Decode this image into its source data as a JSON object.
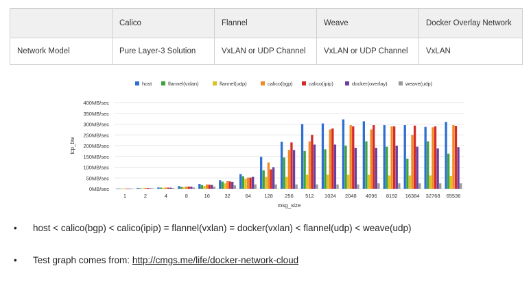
{
  "table": {
    "headers": [
      "",
      "Calico",
      "Flannel",
      "Weave",
      "Docker Overlay Network"
    ],
    "rows": [
      [
        "Network Model",
        "Pure Layer-3 Solution",
        "VxLAN or UDP Channel",
        "VxLAN or UDP Channel",
        "VxLAN"
      ]
    ]
  },
  "chart_data": {
    "type": "bar",
    "xlabel": "msg_size",
    "ylabel": "tcp_bw",
    "ylim": [
      0,
      400
    ],
    "yticks": [
      "0MB/sec",
      "50MB/sec",
      "100MB/sec",
      "150MB/sec",
      "200MB/sec",
      "250MB/sec",
      "300MB/sec",
      "350MB/sec",
      "400MB/sec"
    ],
    "legend_position": "top",
    "grid": true,
    "categories": [
      "1",
      "2",
      "4",
      "8",
      "16",
      "32",
      "64",
      "128",
      "256",
      "512",
      "1024",
      "2048",
      "4096",
      "8192",
      "16384",
      "32768",
      "65536"
    ],
    "series": [
      {
        "name": "host",
        "color": "#2f6fd1",
        "values": [
          1,
          3,
          6,
          12,
          22,
          40,
          68,
          148,
          218,
          300,
          303,
          322,
          313,
          295,
          295,
          287,
          310
        ]
      },
      {
        "name": "flannel(vxlan)",
        "color": "#3da33d",
        "values": [
          1,
          2,
          5,
          9,
          17,
          33,
          58,
          85,
          145,
          175,
          183,
          200,
          220,
          195,
          140,
          220,
          163
        ]
      },
      {
        "name": "flannel(udp)",
        "color": "#e0c020",
        "values": [
          1,
          2,
          4,
          7,
          13,
          25,
          45,
          55,
          55,
          65,
          65,
          65,
          65,
          62,
          62,
          62,
          60
        ]
      },
      {
        "name": "calico(bgp)",
        "color": "#f08a24",
        "values": [
          1,
          3,
          5,
          10,
          20,
          35,
          52,
          122,
          180,
          220,
          275,
          295,
          275,
          290,
          250,
          285,
          295
        ]
      },
      {
        "name": "calico(ipip)",
        "color": "#d42a2a",
        "values": [
          1,
          3,
          5,
          10,
          19,
          34,
          52,
          90,
          215,
          250,
          280,
          290,
          295,
          290,
          293,
          290,
          292
        ]
      },
      {
        "name": "docker(overlay)",
        "color": "#6b3fa0",
        "values": [
          1,
          2,
          5,
          10,
          18,
          32,
          55,
          100,
          180,
          205,
          205,
          190,
          190,
          200,
          195,
          187,
          193
        ]
      },
      {
        "name": "weave(udp)",
        "color": "#9a9a9a",
        "values": [
          1,
          2,
          3,
          6,
          10,
          16,
          20,
          20,
          20,
          20,
          20,
          20,
          25,
          25,
          25,
          25,
          25
        ]
      }
    ]
  },
  "bullets": [
    {
      "text": "host < calico(bgp) < calico(ipip) = flannel(vxlan) = docker(vxlan) < flannel(udp) < weave(udp)"
    },
    {
      "text": "Test graph comes from: ",
      "link": "http://cmgs.me/life/docker-network-cloud"
    }
  ],
  "bullet_symbol": "•"
}
